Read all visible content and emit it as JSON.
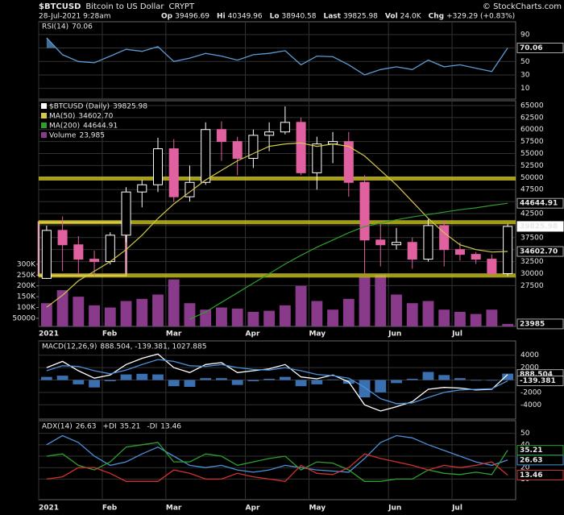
{
  "header": {
    "symbol": "$BTCUSD",
    "name": "Bitcoin to US Dollar",
    "exchange": "CRYPT",
    "date": "28-Jul-2021 9:28am",
    "stats": [
      {
        "label": "Op",
        "value": 39496.69
      },
      {
        "label": "Hi",
        "value": 40349.96
      },
      {
        "label": "Lo",
        "value": 38940.58
      },
      {
        "label": "Last",
        "value": 39825.98
      },
      {
        "label": "Vol",
        "value": "24.0K"
      },
      {
        "label": "Chg",
        "value": "+329.29 (+0.83%)"
      }
    ],
    "watermark": "© StockCharts.com"
  },
  "chart_data": [
    {
      "type": "line",
      "ylim": [
        -6,
        109
      ],
      "yticks": [
        10,
        30,
        50,
        70,
        90
      ],
      "grid": true,
      "shade_above": 70,
      "series": [
        {
          "name": "RSI(14)",
          "last": "70.06",
          "color": "#5b9bd5",
          "values": [
            85,
            60,
            50,
            48,
            58,
            68,
            65,
            72,
            50,
            55,
            62,
            58,
            52,
            60,
            62,
            66,
            45,
            58,
            57,
            45,
            30,
            38,
            42,
            38,
            52,
            42,
            45,
            40,
            35,
            70.06
          ]
        }
      ]
    },
    {
      "type": "candlestick",
      "ylim": [
        19000,
        66000
      ],
      "yticks": [
        27500,
        30000,
        32500,
        35000,
        37500,
        40000,
        42500,
        45000,
        47500,
        50000,
        52500,
        55000,
        57500,
        60000,
        62500,
        65000
      ],
      "grid": true,
      "categories": [
        "2021",
        null,
        null,
        null,
        "Feb",
        null,
        null,
        null,
        "Mar",
        null,
        null,
        null,
        null,
        "Apr",
        null,
        null,
        null,
        "May",
        null,
        null,
        null,
        null,
        "Jun",
        null,
        null,
        null,
        "Jul",
        null,
        null,
        null
      ],
      "candles": {
        "name": "$BTCUSD (Daily)",
        "last": "39825.98",
        "up_color": "#ffffff",
        "down_color": "#e060a0",
        "open": [
          29000,
          39000,
          36000,
          33000,
          32500,
          38000,
          47000,
          48500,
          56000,
          46000,
          49000,
          60000,
          57500,
          54000,
          58800,
          59500,
          61500,
          51000,
          57000,
          57500,
          49000,
          37000,
          36000,
          36500,
          33000,
          40000,
          35000,
          34000,
          33000,
          30000
        ],
        "high": [
          40000,
          41900,
          37800,
          34800,
          38600,
          48000,
          49500,
          58300,
          58000,
          52500,
          61500,
          61700,
          58500,
          60000,
          61500,
          64800,
          62500,
          58500,
          59500,
          59500,
          50500,
          40800,
          39500,
          37500,
          41300,
          41000,
          36500,
          34500,
          34000,
          40349.96
        ],
        "low": [
          28900,
          30500,
          30000,
          29500,
          31900,
          36500,
          43800,
          47000,
          44900,
          45000,
          48500,
          53500,
          50500,
          52000,
          55500,
          59000,
          50500,
          47500,
          53000,
          46000,
          30000,
          31500,
          35000,
          31000,
          32500,
          31500,
          32700,
          32000,
          29300,
          29500
        ],
        "close": [
          39000,
          36000,
          33000,
          32500,
          38000,
          47000,
          48500,
          56000,
          46000,
          49000,
          60000,
          57500,
          54000,
          58800,
          59500,
          61500,
          51000,
          57000,
          57500,
          49000,
          37000,
          36000,
          36500,
          33000,
          40000,
          35000,
          34000,
          33000,
          30000,
          39825.98
        ]
      },
      "series": [
        {
          "name": "MA(50)",
          "last": "34602.70",
          "color": "#d4c94a",
          "values": [
            23000,
            25500,
            28500,
            30500,
            32500,
            35000,
            38000,
            41500,
            44500,
            47000,
            49500,
            51500,
            53500,
            55000,
            56500,
            57000,
            57200,
            56500,
            57000,
            56500,
            54500,
            51500,
            48500,
            45000,
            41500,
            38500,
            36000,
            35000,
            34500,
            34602.7
          ]
        },
        {
          "name": "MA(200)",
          "last": "44644.91",
          "color": "#2e9e2e",
          "values": [
            null,
            null,
            null,
            null,
            null,
            null,
            null,
            null,
            null,
            20500,
            22000,
            24000,
            26000,
            28000,
            30000,
            32000,
            33800,
            35500,
            37000,
            38500,
            39800,
            40500,
            41200,
            41800,
            42300,
            42800,
            43300,
            43700,
            44200,
            44644.91
          ]
        }
      ],
      "volume": {
        "name": "Volume",
        "last": {
          "value": 23985,
          "label": "23,985"
        },
        "color": "#8a3a8a",
        "ylim": [
          12500,
          1057000
        ],
        "yticks": [
          50000,
          {
            "value": 100000,
            "label": "100K"
          },
          {
            "value": 150000,
            "label": "150K"
          },
          {
            "value": 200000,
            "label": "200K"
          },
          {
            "value": 250000,
            "label": "250K"
          },
          {
            "value": 300000,
            "label": "300K"
          }
        ],
        "values": [
          120000,
          180000,
          150000,
          110000,
          100000,
          130000,
          140000,
          160000,
          230000,
          120000,
          90000,
          100000,
          95000,
          80000,
          85000,
          110000,
          200000,
          130000,
          90000,
          140000,
          240000,
          250000,
          160000,
          120000,
          130000,
          90000,
          80000,
          70000,
          90000,
          23985
        ]
      },
      "hlines": [
        49800,
        40700,
        29600
      ],
      "highlight": {
        "start": 0,
        "end": 5,
        "low": 29600,
        "high": 40700
      }
    },
    {
      "type": "macd",
      "ylim": [
        -6300,
        6300
      ],
      "yticks": [
        -4000,
        -2000,
        0,
        2000,
        4000
      ],
      "grid": true,
      "legend": "MACD(12,26,9)",
      "legend_values": "888.504, -139.381, 1027.885",
      "series": [
        {
          "name": "MACD",
          "last": "888.504",
          "color": "#ffffff",
          "values": [
            2000,
            3000,
            1500,
            300,
            800,
            2500,
            3500,
            4200,
            2000,
            1200,
            2500,
            2800,
            1200,
            1500,
            1800,
            2500,
            500,
            200,
            800,
            -300,
            -4000,
            -5000,
            -4300,
            -3500,
            -1500,
            -1200,
            -1300,
            -1600,
            -1500,
            888.504
          ]
        },
        {
          "name": "Signal",
          "last": "-139.381",
          "color": "#4a90d9",
          "values": [
            1500,
            2300,
            2200,
            1500,
            1000,
            1600,
            2500,
            3300,
            3000,
            2300,
            2200,
            2500,
            2000,
            1700,
            1600,
            2000,
            1500,
            900,
            700,
            300,
            -1200,
            -3000,
            -3800,
            -3700,
            -2800,
            -2000,
            -1600,
            -1500,
            -1400,
            -139.381
          ]
        }
      ],
      "histogram": {
        "color": "#3a6fb0",
        "values": [
          500,
          700,
          -700,
          -1200,
          -200,
          900,
          1000,
          900,
          -1000,
          -1100,
          300,
          300,
          -800,
          -200,
          200,
          500,
          -1000,
          -700,
          100,
          -600,
          -2800,
          -2000,
          -500,
          200,
          1300,
          800,
          300,
          -100,
          -100,
          1027.885
        ]
      }
    },
    {
      "type": "line",
      "ylim": [
        -8,
        61
      ],
      "yticks": [
        10,
        20,
        30,
        40,
        50
      ],
      "grid": true,
      "categories": [
        "2021",
        null,
        null,
        null,
        "Feb",
        null,
        null,
        null,
        "Mar",
        null,
        null,
        null,
        null,
        "Apr",
        null,
        null,
        null,
        "May",
        null,
        null,
        null,
        null,
        "Jun",
        null,
        null,
        null,
        "Jul",
        null,
        null,
        null
      ],
      "series": [
        {
          "name": "ADX(14)",
          "last": "26.63",
          "color": "#4a90d9",
          "values": [
            40,
            48,
            42,
            30,
            22,
            25,
            32,
            38,
            30,
            22,
            20,
            22,
            18,
            16,
            18,
            22,
            20,
            18,
            17,
            16,
            28,
            42,
            48,
            46,
            40,
            35,
            30,
            25,
            22,
            26.63
          ]
        },
        {
          "name": "+DI",
          "last": "35.21",
          "color": "#2ea02e",
          "values": [
            30,
            32,
            22,
            18,
            25,
            38,
            40,
            42,
            25,
            25,
            32,
            30,
            22,
            25,
            28,
            30,
            18,
            25,
            24,
            18,
            8,
            8,
            10,
            10,
            18,
            15,
            14,
            16,
            14,
            35.21
          ]
        },
        {
          "name": "-DI",
          "last": "13.46",
          "color": "#d03030",
          "values": [
            10,
            12,
            20,
            20,
            15,
            8,
            8,
            8,
            18,
            15,
            10,
            10,
            15,
            12,
            10,
            8,
            22,
            15,
            14,
            20,
            32,
            28,
            25,
            22,
            18,
            22,
            20,
            22,
            25,
            13.46
          ]
        }
      ]
    }
  ]
}
